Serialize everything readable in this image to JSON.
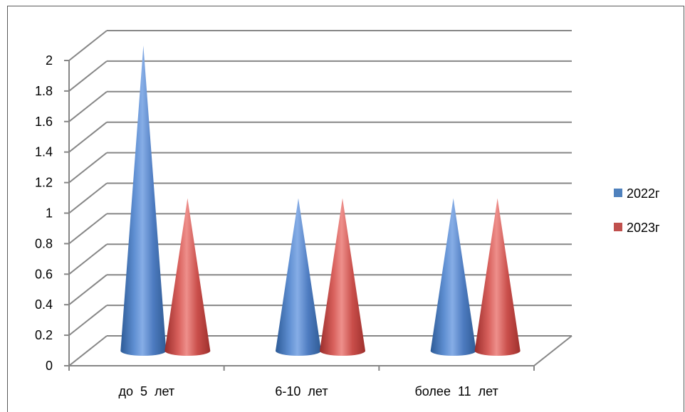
{
  "chart_data": {
    "type": "bar",
    "style": "3d-cone",
    "title": "",
    "xlabel": "",
    "ylabel": "",
    "categories": [
      "до  5  лет",
      "6-10  лет",
      "более  11  лет"
    ],
    "series": [
      {
        "name": "2022г",
        "values": [
          2,
          1,
          1
        ],
        "color": "#4f81bd"
      },
      {
        "name": "2023г",
        "values": [
          1,
          1,
          1
        ],
        "color": "#c0504d"
      }
    ],
    "y_ticks": [
      "0",
      "0.2",
      "0.4",
      "0.6",
      "0.8",
      "1",
      "1.2",
      "1.4",
      "1.6",
      "1.8",
      "2"
    ],
    "ylim": [
      0,
      2
    ],
    "grid": true,
    "legend_position": "right"
  }
}
